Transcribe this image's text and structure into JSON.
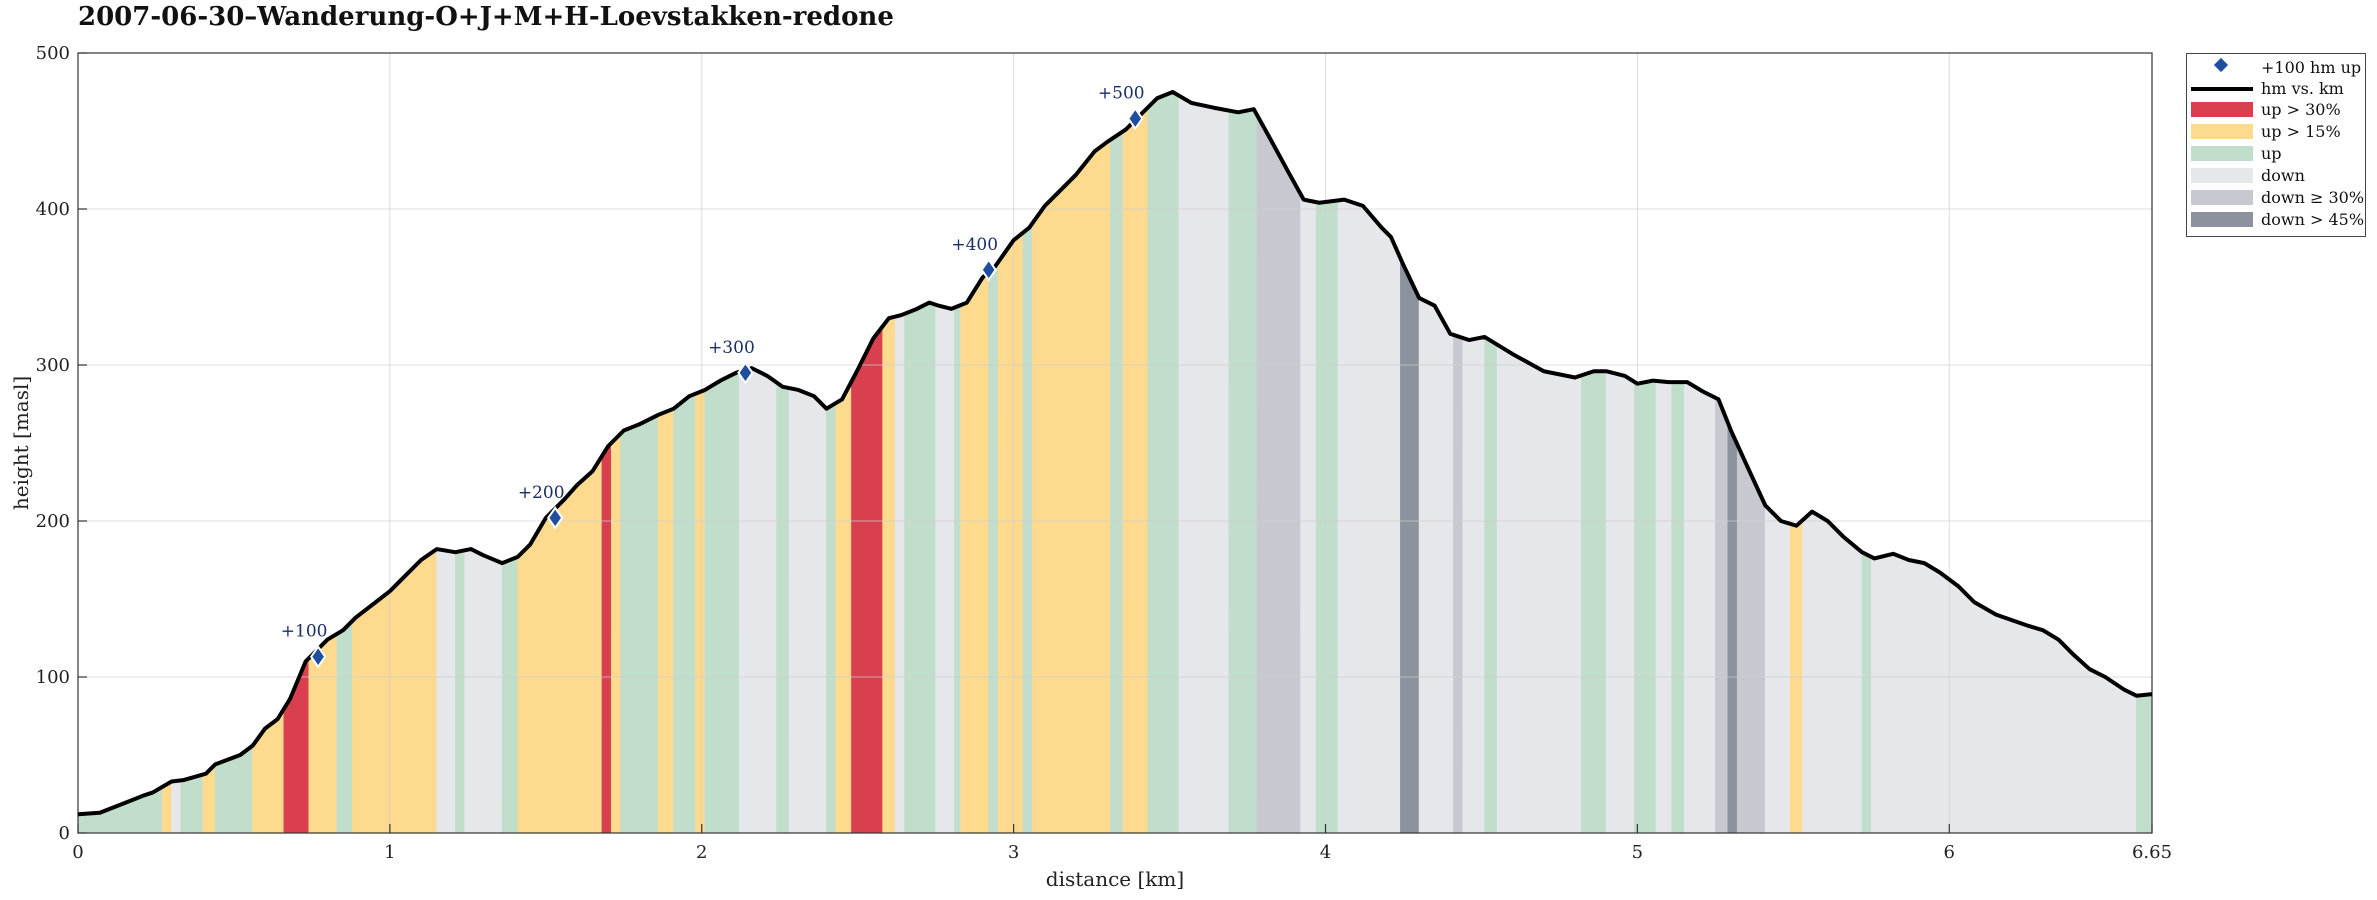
{
  "title": "2007-06-30–Wanderung-O+J+M+H-Loevstakken-redone",
  "legend": {
    "items": [
      {
        "key": "marker",
        "label": "+100 hm up",
        "color": "#1f4e9e"
      },
      {
        "key": "line",
        "label": "hm vs. km",
        "color": "#000000"
      },
      {
        "key": "up30",
        "label": "up > 30%",
        "color": "#d9404f"
      },
      {
        "key": "up15",
        "label": "up > 15%",
        "color": "#fdda8e"
      },
      {
        "key": "up",
        "label": "up",
        "color": "#c0decb"
      },
      {
        "key": "down",
        "label": "down",
        "color": "#e6e7ea"
      },
      {
        "key": "down30",
        "label": "down ≥ 30%",
        "color": "#c8c9d0"
      },
      {
        "key": "down45",
        "label": "down > 45%",
        "color": "#8c929e"
      }
    ]
  },
  "chart_data": {
    "type": "area",
    "title": "2007-06-30–Wanderung-O+J+M+H-Loevstakken-redone",
    "xlabel": "distance [km]",
    "ylabel": "height [masl]",
    "xlim": [
      0,
      6.65
    ],
    "ylim": [
      0,
      500
    ],
    "xticks": [
      0,
      1,
      2,
      3,
      4,
      5,
      6,
      6.65
    ],
    "xtick_labels": [
      "0",
      "1",
      "2",
      "3",
      "4",
      "5",
      "6",
      "6.65"
    ],
    "yticks": [
      0,
      100,
      200,
      300,
      400,
      500
    ],
    "ytick_labels": [
      "0",
      "100",
      "200",
      "300",
      "400",
      "500"
    ],
    "grid": true,
    "legend_position": "outside-top-right",
    "colors": {
      "up30": "#d9404f",
      "up15": "#fdda8e",
      "up": "#c0decb",
      "down": "#e6e7ea",
      "down30": "#c8c9d0",
      "down45": "#8c929e"
    },
    "profile": {
      "x": [
        0,
        0.07,
        0.16,
        0.21,
        0.24,
        0.3,
        0.34,
        0.41,
        0.44,
        0.52,
        0.56,
        0.6,
        0.64,
        0.68,
        0.73,
        0.8,
        0.85,
        0.89,
        1.0,
        1.05,
        1.1,
        1.15,
        1.21,
        1.26,
        1.3,
        1.36,
        1.41,
        1.45,
        1.5,
        1.56,
        1.6,
        1.65,
        1.7,
        1.75,
        1.8,
        1.86,
        1.91,
        1.96,
        2.01,
        2.06,
        2.11,
        2.16,
        2.21,
        2.26,
        2.31,
        2.36,
        2.4,
        2.45,
        2.5,
        2.55,
        2.6,
        2.64,
        2.69,
        2.73,
        2.76,
        2.8,
        2.85,
        2.9,
        2.94,
        3.0,
        3.05,
        3.1,
        3.15,
        3.2,
        3.26,
        3.3,
        3.36,
        3.41,
        3.46,
        3.51,
        3.57,
        3.64,
        3.72,
        3.77,
        3.82,
        3.88,
        3.93,
        3.98,
        4.06,
        4.12,
        4.18,
        4.21,
        4.25,
        4.3,
        4.35,
        4.4,
        4.46,
        4.51,
        4.6,
        4.7,
        4.8,
        4.86,
        4.9,
        4.96,
        5.0,
        5.05,
        5.1,
        5.16,
        5.21,
        5.26,
        5.3,
        5.35,
        5.41,
        5.46,
        5.51,
        5.56,
        5.61,
        5.66,
        5.72,
        5.76,
        5.82,
        5.87,
        5.92,
        5.97,
        6.03,
        6.08,
        6.15,
        6.25,
        6.3,
        6.35,
        6.4,
        6.45,
        6.5,
        6.56,
        6.6,
        6.65
      ],
      "y": [
        12,
        13,
        20,
        24,
        26,
        33,
        34,
        38,
        44,
        50,
        56,
        67,
        73,
        86,
        110,
        124,
        130,
        138,
        155,
        165,
        175,
        182,
        180,
        182,
        178,
        173,
        177,
        185,
        202,
        214,
        223,
        232,
        248,
        258,
        262,
        268,
        272,
        280,
        284,
        290,
        295,
        298,
        293,
        286,
        284,
        280,
        272,
        278,
        297,
        317,
        330,
        332,
        336,
        340,
        338,
        336,
        340,
        356,
        363,
        380,
        388,
        402,
        412,
        422,
        437,
        443,
        451,
        461,
        471,
        475,
        468,
        465,
        462,
        464,
        446,
        424,
        406,
        404,
        406,
        402,
        388,
        382,
        364,
        343,
        338,
        320,
        316,
        318,
        307,
        296,
        292,
        296,
        296,
        293,
        288,
        290,
        289,
        289,
        283,
        278,
        258,
        236,
        210,
        200,
        197,
        206,
        200,
        190,
        180,
        176,
        179,
        175,
        173,
        167,
        158,
        148,
        140,
        133,
        130,
        124,
        114,
        105,
        100,
        92,
        88,
        89
      ]
    },
    "segments": [
      [
        0,
        0.27,
        "up"
      ],
      [
        0.27,
        0.3,
        "up15"
      ],
      [
        0.3,
        0.33,
        "down"
      ],
      [
        0.33,
        0.4,
        "up"
      ],
      [
        0.4,
        0.44,
        "up15"
      ],
      [
        0.44,
        0.56,
        "up"
      ],
      [
        0.56,
        0.66,
        "up15"
      ],
      [
        0.66,
        0.74,
        "up30"
      ],
      [
        0.74,
        0.83,
        "up15"
      ],
      [
        0.83,
        0.88,
        "up"
      ],
      [
        0.88,
        1.15,
        "up15"
      ],
      [
        1.15,
        1.21,
        "down"
      ],
      [
        1.21,
        1.24,
        "up"
      ],
      [
        1.24,
        1.36,
        "down"
      ],
      [
        1.36,
        1.41,
        "up"
      ],
      [
        1.41,
        1.68,
        "up15"
      ],
      [
        1.68,
        1.71,
        "up30"
      ],
      [
        1.71,
        1.74,
        "up15"
      ],
      [
        1.74,
        1.86,
        "up"
      ],
      [
        1.86,
        1.91,
        "up15"
      ],
      [
        1.91,
        1.98,
        "up"
      ],
      [
        1.98,
        2.01,
        "up15"
      ],
      [
        2.01,
        2.12,
        "up"
      ],
      [
        2.12,
        2.24,
        "down"
      ],
      [
        2.24,
        2.28,
        "up"
      ],
      [
        2.28,
        2.4,
        "down"
      ],
      [
        2.4,
        2.43,
        "up"
      ],
      [
        2.43,
        2.48,
        "up15"
      ],
      [
        2.48,
        2.58,
        "up30"
      ],
      [
        2.58,
        2.62,
        "up15"
      ],
      [
        2.62,
        2.65,
        "down"
      ],
      [
        2.65,
        2.75,
        "up"
      ],
      [
        2.75,
        2.81,
        "down"
      ],
      [
        2.81,
        2.83,
        "up"
      ],
      [
        2.83,
        2.92,
        "up15"
      ],
      [
        2.92,
        2.95,
        "up"
      ],
      [
        2.95,
        3.03,
        "up15"
      ],
      [
        3.03,
        3.06,
        "up"
      ],
      [
        3.06,
        3.31,
        "up15"
      ],
      [
        3.31,
        3.35,
        "up"
      ],
      [
        3.35,
        3.43,
        "up15"
      ],
      [
        3.43,
        3.53,
        "up"
      ],
      [
        3.53,
        3.69,
        "down"
      ],
      [
        3.69,
        3.78,
        "up"
      ],
      [
        3.78,
        3.92,
        "down30"
      ],
      [
        3.92,
        3.97,
        "down"
      ],
      [
        3.97,
        4.04,
        "up"
      ],
      [
        4.04,
        4.24,
        "down"
      ],
      [
        4.24,
        4.3,
        "down45"
      ],
      [
        4.3,
        4.41,
        "down"
      ],
      [
        4.41,
        4.44,
        "down30"
      ],
      [
        4.44,
        4.51,
        "down"
      ],
      [
        4.51,
        4.55,
        "up"
      ],
      [
        4.55,
        4.82,
        "down"
      ],
      [
        4.82,
        4.9,
        "up"
      ],
      [
        4.9,
        4.99,
        "down"
      ],
      [
        4.99,
        5.06,
        "up"
      ],
      [
        5.06,
        5.11,
        "down"
      ],
      [
        5.11,
        5.15,
        "up"
      ],
      [
        5.15,
        5.25,
        "down"
      ],
      [
        5.25,
        5.29,
        "down30"
      ],
      [
        5.29,
        5.32,
        "down45"
      ],
      [
        5.32,
        5.41,
        "down30"
      ],
      [
        5.41,
        5.49,
        "down"
      ],
      [
        5.49,
        5.53,
        "up15"
      ],
      [
        5.53,
        5.72,
        "down"
      ],
      [
        5.72,
        5.75,
        "up"
      ],
      [
        5.75,
        6.6,
        "down"
      ],
      [
        6.6,
        6.65,
        "up"
      ]
    ],
    "markers": [
      {
        "x": 0.77,
        "y": 113,
        "label": "+100"
      },
      {
        "x": 1.53,
        "y": 202,
        "label": "+200"
      },
      {
        "x": 2.14,
        "y": 295,
        "label": "+300"
      },
      {
        "x": 2.92,
        "y": 361,
        "label": "+400"
      },
      {
        "x": 3.39,
        "y": 458,
        "label": "+500"
      }
    ]
  }
}
